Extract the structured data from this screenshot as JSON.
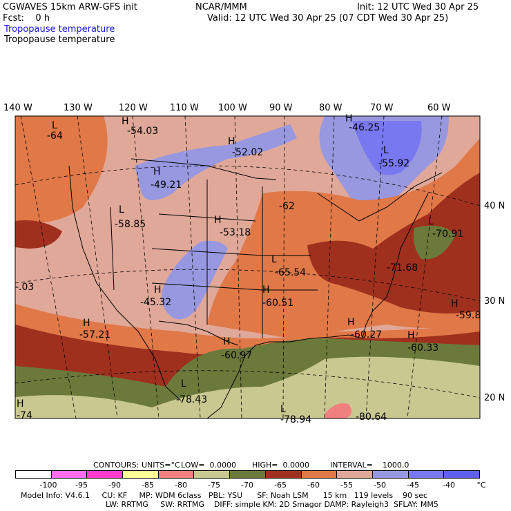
{
  "header": {
    "model": "CGWAVES 15km ARW-GFS init",
    "fcst": "Fcst:    0 h",
    "org": "NCAR/MMM",
    "init": "Init: 12 UTC Wed 30 Apr 25",
    "valid": "Valid: 12 UTC Wed 30 Apr 25 (07 CDT Wed 30 Apr 25)",
    "field_colored": "Tropopause temperature",
    "field_contour": "Tropopause temperature"
  },
  "longitude_labels": [
    "140 W",
    "130 W",
    "120 W",
    "110 W",
    "100 W",
    "90 W",
    "80 W",
    "70 W",
    "60 W"
  ],
  "latitude_labels": [
    "40 N",
    "30 N",
    "20 N"
  ],
  "map_labels": [
    {
      "sym": "H",
      "val": "-54.03"
    },
    {
      "sym": "L",
      "val": "-64"
    },
    {
      "sym": "H",
      "val": "-46.25"
    },
    {
      "sym": "H",
      "val": "-52.02"
    },
    {
      "sym": "L",
      "val": "-55.92"
    },
    {
      "sym": "H",
      "val": "-49.21"
    },
    {
      "sym": "",
      "val": "-62"
    },
    {
      "sym": "L",
      "val": "-58.85"
    },
    {
      "sym": "H",
      "val": "-53.18"
    },
    {
      "sym": "L",
      "val": "-70.91"
    },
    {
      "sym": "L",
      "val": "-65.54"
    },
    {
      "sym": "",
      "val": "-71.68"
    },
    {
      "sym": "H",
      "val": "-45.32"
    },
    {
      "sym": "H",
      "val": "-60.51"
    },
    {
      "sym": "H",
      "val": "-59.8"
    },
    {
      "sym": "",
      "val": "-.03"
    },
    {
      "sym": "H",
      "val": "-57.21"
    },
    {
      "sym": "H",
      "val": "-60.27"
    },
    {
      "sym": "H",
      "val": "-60.33"
    },
    {
      "sym": "H",
      "val": "-60.97"
    },
    {
      "sym": "L",
      "val": "-78.43"
    },
    {
      "sym": "L",
      "val": "-78.94"
    },
    {
      "sym": "",
      "val": "-80.64"
    },
    {
      "sym": "H",
      "val": "-74"
    }
  ],
  "contours_info": {
    "contours": "CONTOURS:",
    "units": "UNITS=°C",
    "low": "LOW=  0.0000",
    "high": "HIGH=  0.0000",
    "interval": "INTERVAL=    1000.0"
  },
  "legend": {
    "colors": [
      "#ffffff",
      "#ff6ef0",
      "#ff3bd0",
      "#ffff99",
      "#f08080",
      "#c8c890",
      "#6b7a3a",
      "#a0301e",
      "#e07848",
      "#e0a898",
      "#9898e0",
      "#7878f0",
      "#6060f0"
    ],
    "ticks": [
      "-100",
      "-95",
      "-90",
      "-85",
      "-80",
      "-75",
      "-70",
      "-65",
      "-60",
      "-55",
      "-50",
      "-45",
      "-40"
    ],
    "unit": "°C"
  },
  "footer": {
    "line1": "Model Info: V4.6.1     CU: KF     MP: WDM 6class   PBL: YSU      SF: Noah LSM      15 km   119 levels    90 sec",
    "line2": "LW: RRTMG     SW: RRTMG    DIFF: simple KM: 2D Smagor DAMP: Rayleigh3  SFLAY: MM5"
  }
}
